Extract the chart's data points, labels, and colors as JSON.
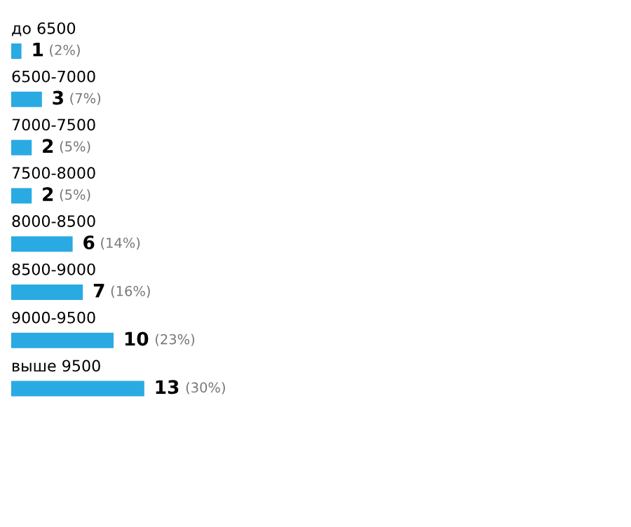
{
  "chart_data": {
    "type": "bar",
    "orientation": "horizontal",
    "categories": [
      "до 6500",
      "6500-7000",
      "7000-7500",
      "7500-8000",
      "8000-8500",
      "8500-9000",
      "9000-9500",
      "выше 9500"
    ],
    "values": [
      1,
      3,
      2,
      2,
      6,
      7,
      10,
      13
    ],
    "color": "#2aaae2",
    "data_labels": true,
    "annotations": [
      "(2%)",
      "(7%)",
      "(5%)",
      "(5%)",
      "(14%)",
      "(16%)",
      "(23%)",
      "(30%)"
    ]
  }
}
